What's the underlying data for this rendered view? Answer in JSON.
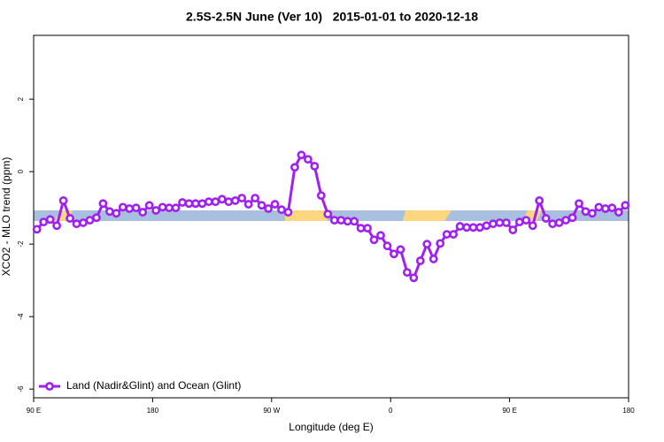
{
  "chart_data": {
    "type": "line",
    "title": "2.5S-2.5N June (Ver 10)   2015-01-01 to 2020-12-18",
    "x_label": "Longitude (deg E)",
    "y_label": "XCO2 - MLO trend (ppm)",
    "xlim": [
      90,
      540
    ],
    "ylim": [
      -6.24,
      3.76
    ],
    "xticks": [
      {
        "value": 90,
        "label": "90 E"
      },
      180,
      {
        "value": 270,
        "label": "90 W"
      },
      {
        "value": 360,
        "label": "0"
      },
      {
        "value": 450,
        "label": "90 E"
      },
      {
        "value": 540,
        "label": "180"
      }
    ],
    "yticks": [
      -6,
      -4,
      -2,
      0,
      2
    ],
    "grid": false,
    "legend": "bottom-left",
    "x": [
      92.5,
      97.5,
      102.5,
      107.5,
      112.5,
      117.5,
      122.5,
      127.5,
      132.5,
      137.5,
      142.5,
      147.5,
      152.5,
      157.5,
      162.5,
      167.5,
      172.5,
      177.5,
      182.5,
      187.5,
      192.5,
      197.5,
      202.5,
      207.5,
      212.5,
      217.5,
      222.5,
      227.5,
      232.5,
      237.5,
      242.5,
      247.5,
      252.5,
      257.5,
      262.5,
      267.5,
      272.5,
      277.5,
      282.5,
      287.5,
      292.5,
      297.5,
      302.5,
      307.5,
      312.5,
      317.5,
      322.5,
      327.5,
      332.5,
      337.5,
      342.5,
      347.5,
      352.5,
      357.5,
      362.5,
      367.5,
      372.5,
      377.5,
      382.5,
      387.5,
      392.5,
      397.5,
      402.5,
      407.5,
      412.5,
      417.5,
      422.5,
      427.5,
      432.5,
      437.5,
      442.5,
      447.5,
      452.5,
      457.5,
      462.5,
      467.5,
      472.5,
      477.5,
      482.5,
      487.5,
      492.5,
      497.5,
      502.5,
      507.5,
      512.5,
      517.5,
      522.5,
      527.5,
      532.5,
      537.5
    ],
    "series": [
      {
        "name": "Land (Nadir&Glint) and Ocean (Glint)",
        "color": "#a020f0",
        "values": [
          -1.59,
          -1.39,
          -1.32,
          -1.49,
          -0.8,
          -1.29,
          -1.44,
          -1.41,
          -1.34,
          -1.27,
          -0.88,
          -1.1,
          -1.15,
          -0.98,
          -1.02,
          -1.0,
          -1.12,
          -0.93,
          -1.07,
          -0.98,
          -1.0,
          -1.0,
          -0.85,
          -0.88,
          -0.88,
          -0.88,
          -0.83,
          -0.83,
          -0.76,
          -0.83,
          -0.8,
          -0.73,
          -0.9,
          -0.73,
          -0.93,
          -1.02,
          -0.9,
          -1.05,
          -1.12,
          0.12,
          0.46,
          0.34,
          0.15,
          -0.66,
          -1.17,
          -1.34,
          -1.34,
          -1.37,
          -1.37,
          -1.56,
          -1.56,
          -1.88,
          -1.76,
          -2.05,
          -2.27,
          -2.15,
          -2.78,
          -2.93,
          -2.46,
          -2.0,
          -2.41,
          -1.98,
          -1.73,
          -1.73,
          -1.51,
          -1.54,
          -1.54,
          -1.54,
          -1.49,
          -1.44,
          -1.41,
          -1.41,
          -1.61,
          -1.39,
          -1.34,
          -1.49,
          -0.8,
          -1.29,
          -1.44,
          -1.41,
          -1.34,
          -1.27,
          -0.88,
          -1.1,
          -1.15,
          -0.98,
          -1.02,
          -1.0,
          -1.12,
          -0.93
        ]
      }
    ]
  }
}
